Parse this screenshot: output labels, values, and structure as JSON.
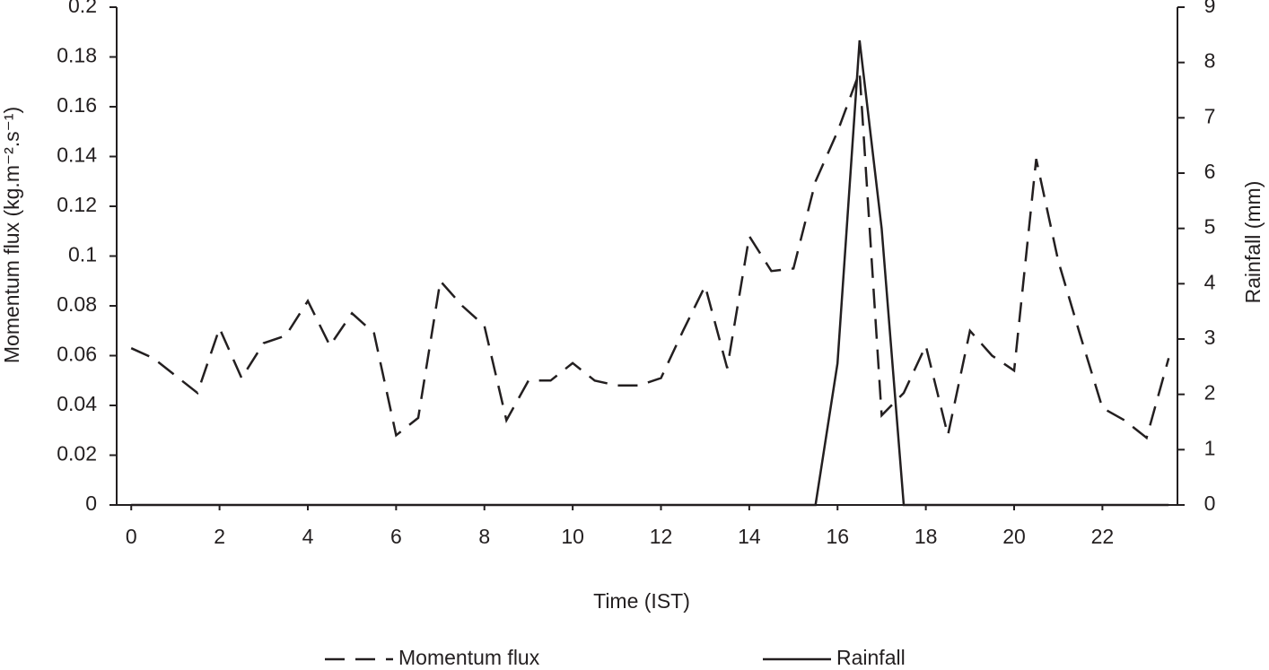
{
  "chart_data": {
    "type": "line",
    "x_label": "Time (IST)",
    "y_label": "Momentum flux (kg.m⁻².s⁻¹)",
    "y2_label": "Rainfall (mm)",
    "x": [
      0,
      0.5,
      1,
      1.5,
      2,
      2.5,
      3,
      3.5,
      4,
      4.5,
      5,
      5.5,
      6,
      6.5,
      7,
      7.5,
      8,
      8.5,
      9,
      9.5,
      10,
      10.5,
      11,
      11.5,
      12,
      12.5,
      13,
      13.5,
      14,
      14.5,
      15,
      15.5,
      16,
      16.5,
      17,
      17.5,
      18,
      18.5,
      19,
      19.5,
      20,
      20.5,
      21,
      21.5,
      22,
      22.5,
      23,
      23.5
    ],
    "series": [
      {
        "name": "Momentum flux",
        "color": "#231f20",
        "line_style": "dashed",
        "axis": "y",
        "values": [
          0.063,
          0.059,
          0.052,
          0.045,
          0.071,
          0.051,
          0.065,
          0.068,
          0.082,
          0.064,
          0.077,
          0.069,
          0.028,
          0.035,
          0.09,
          0.08,
          0.072,
          0.034,
          0.05,
          0.05,
          0.057,
          0.05,
          0.048,
          0.048,
          0.051,
          0.07,
          0.088,
          0.055,
          0.108,
          0.094,
          0.095,
          0.13,
          0.15,
          0.174,
          0.036,
          0.045,
          0.064,
          0.028,
          0.07,
          0.06,
          0.054,
          0.139,
          0.098,
          0.068,
          0.039,
          0.034,
          0.027,
          0.059
        ]
      },
      {
        "name": "Rainfall",
        "color": "#231f20",
        "line_style": "solid",
        "axis": "y2",
        "values": [
          0,
          0,
          0,
          0,
          0,
          0,
          0,
          0,
          0,
          0,
          0,
          0,
          0,
          0,
          0,
          0,
          0,
          0,
          0,
          0,
          0,
          0,
          0,
          0,
          0,
          0,
          0,
          0,
          0,
          0,
          0,
          0,
          2.56,
          8.4,
          5.0,
          0,
          0,
          0,
          0,
          0,
          0,
          0,
          0,
          0,
          0,
          0,
          0,
          0
        ]
      }
    ],
    "xlim": [
      -0.33,
      23.7
    ],
    "xticks": [
      0,
      2,
      4,
      6,
      8,
      10,
      12,
      14,
      16,
      18,
      20,
      22
    ],
    "ylim": [
      0,
      0.2
    ],
    "yticks": [
      0,
      0.02,
      0.04,
      0.06,
      0.08,
      0.1,
      0.12,
      0.14,
      0.16,
      0.18,
      0.2
    ],
    "y2lim": [
      0,
      9
    ],
    "y2ticks": [
      0,
      1,
      2,
      3,
      4,
      5,
      6,
      7,
      8,
      9
    ],
    "legend": "bottom"
  }
}
